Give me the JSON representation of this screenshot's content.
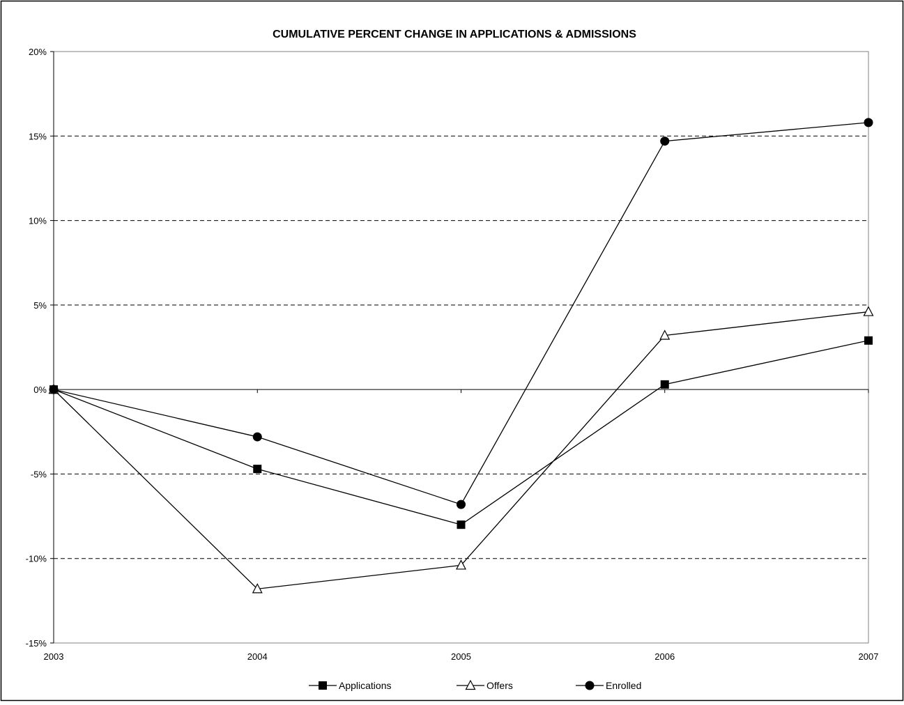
{
  "chart_data": {
    "type": "line",
    "title": "CUMULATIVE PERCENT CHANGE IN APPLICATIONS & ADMISSIONS",
    "xlabel": "",
    "ylabel": "",
    "categories": [
      "2003",
      "2004",
      "2005",
      "2006",
      "2007"
    ],
    "y_ticks": [
      20,
      15,
      10,
      5,
      0,
      -5,
      -10,
      -15
    ],
    "y_tick_labels": [
      "20%",
      "15%",
      "10%",
      "5%",
      "0%",
      "-5%",
      "-10%",
      "-15%"
    ],
    "ylim": [
      -15,
      20
    ],
    "grid": "horizontal dashed",
    "legend_position": "bottom",
    "series": [
      {
        "name": "Applications",
        "marker": "square",
        "values": [
          0,
          -4.7,
          -8.0,
          0.3,
          2.9
        ]
      },
      {
        "name": "Offers",
        "marker": "open-triangle",
        "values": [
          0,
          -11.8,
          -10.4,
          3.2,
          4.6
        ]
      },
      {
        "name": "Enrolled",
        "marker": "circle",
        "values": [
          0,
          -2.8,
          -6.8,
          14.7,
          15.8
        ]
      }
    ],
    "colors": {
      "line": "#000000",
      "grid": "#000000",
      "plot_border": "#808080",
      "background": "#ffffff"
    }
  }
}
